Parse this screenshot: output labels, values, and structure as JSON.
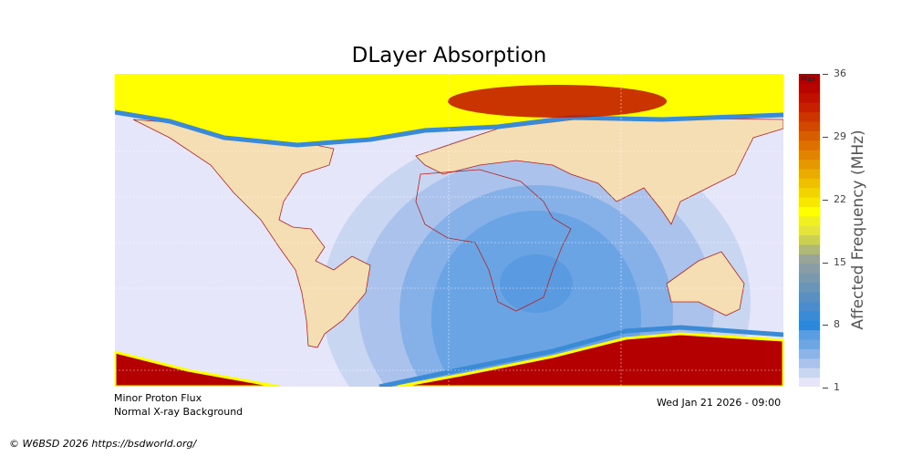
{
  "title": "DLayer Absorption",
  "colorbar": {
    "label": "Affected Frequency (MHz)",
    "max_label": "Max",
    "ticks": [
      "36",
      "29",
      "22",
      "15",
      "8",
      "1"
    ],
    "range": [
      1,
      36
    ],
    "colors": [
      "#e6e6f8",
      "#c9d6f2",
      "#aac2ec",
      "#8cb4e8",
      "#6ea6e4",
      "#5a9de2",
      "#2c88dc",
      "#3a8ad6",
      "#4b8ccc",
      "#5a8fc2",
      "#6a95b8",
      "#7a98ae",
      "#8a9ca6",
      "#9aa59a",
      "#b0b878",
      "#ccd050",
      "#e4e43a",
      "#f0f020",
      "#ffff00",
      "#f8e800",
      "#f2d400",
      "#eec000",
      "#eaac00",
      "#e69800",
      "#e28400",
      "#de7000",
      "#d85c00",
      "#d24800",
      "#cc3400",
      "#c62000",
      "#c01000",
      "#b80400",
      "#b00000"
    ]
  },
  "map": {
    "colors": {
      "background": "#e6e6fa",
      "land": "#f5deb3",
      "coast": "#b22222",
      "polar_high": "#ffff00",
      "extreme": "#b40000"
    }
  },
  "footer": {
    "proton": "Minor Proton Flux",
    "xray": "Normal X-ray Background",
    "timestamp": "Wed Jan 21 2026 - 09:00",
    "copyright": "© W6BSD 2026 https://bsdworld.org/"
  }
}
